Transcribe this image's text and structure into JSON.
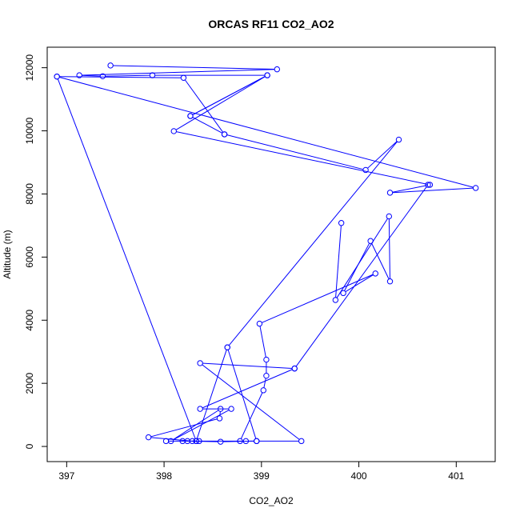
{
  "chart_data": {
    "type": "scatter",
    "title": "ORCAS RF11 CO2_AO2",
    "xlabel": "CO2_AO2",
    "ylabel": "Altitude (m)",
    "xlim": [
      396.8,
      401.4
    ],
    "ylim": [
      -480,
      12650
    ],
    "xticks": [
      397,
      398,
      399,
      400,
      401
    ],
    "yticks": [
      0,
      2000,
      4000,
      6000,
      8000,
      10000,
      12000
    ],
    "grid": false,
    "legend": "none",
    "colors": {
      "series": "#0000ff",
      "axis": "#000000"
    },
    "series": [
      {
        "style": "points-and-lines",
        "points": [
          {
            "x": 397.45,
            "y": 12070
          },
          {
            "x": 399.16,
            "y": 11950
          },
          {
            "x": 397.13,
            "y": 11760
          },
          {
            "x": 397.37,
            "y": 11730
          },
          {
            "x": 397.88,
            "y": 11760
          },
          {
            "x": 399.06,
            "y": 11760
          },
          {
            "x": 398.1,
            "y": 9990
          },
          {
            "x": 400.73,
            "y": 8290
          },
          {
            "x": 400.32,
            "y": 8040
          },
          {
            "x": 401.2,
            "y": 8190
          },
          {
            "x": 396.9,
            "y": 11720
          },
          {
            "x": 398.2,
            "y": 11680
          },
          {
            "x": 398.62,
            "y": 9890
          },
          {
            "x": 400.07,
            "y": 8760
          },
          {
            "x": 400.41,
            "y": 9720
          },
          {
            "x": 398.65,
            "y": 3140
          },
          {
            "x": 398.33,
            "y": 170
          },
          {
            "x": 396.9,
            "y": 11720
          }
        ]
      },
      {
        "style": "points-and-lines",
        "points": [
          {
            "x": 398.27,
            "y": 10470
          },
          {
            "x": 399.06,
            "y": 11760
          },
          {
            "x": 398.27,
            "y": 10470
          },
          {
            "x": 398.62,
            "y": 9890
          }
        ]
      },
      {
        "style": "points-and-lines",
        "points": [
          {
            "x": 399.82,
            "y": 7080
          },
          {
            "x": 399.76,
            "y": 4640
          },
          {
            "x": 400.31,
            "y": 7290
          },
          {
            "x": 400.32,
            "y": 5230
          },
          {
            "x": 400.12,
            "y": 6510
          },
          {
            "x": 399.84,
            "y": 4860
          },
          {
            "x": 400.17,
            "y": 5480
          },
          {
            "x": 398.98,
            "y": 3890
          },
          {
            "x": 399.05,
            "y": 2750
          },
          {
            "x": 399.05,
            "y": 2240
          },
          {
            "x": 399.02,
            "y": 1780
          },
          {
            "x": 398.78,
            "y": 170
          }
        ]
      },
      {
        "style": "points-and-lines",
        "points": [
          {
            "x": 399.34,
            "y": 2470
          },
          {
            "x": 398.37,
            "y": 1190
          },
          {
            "x": 398.69,
            "y": 1190
          },
          {
            "x": 398.07,
            "y": 170
          },
          {
            "x": 398.58,
            "y": 1190
          },
          {
            "x": 398.57,
            "y": 890
          },
          {
            "x": 397.84,
            "y": 290
          },
          {
            "x": 398.29,
            "y": 170
          },
          {
            "x": 398.36,
            "y": 170
          },
          {
            "x": 398.24,
            "y": 170
          },
          {
            "x": 398.19,
            "y": 170
          },
          {
            "x": 398.58,
            "y": 150
          },
          {
            "x": 398.95,
            "y": 170
          },
          {
            "x": 399.41,
            "y": 170
          },
          {
            "x": 398.37,
            "y": 2640
          },
          {
            "x": 399.34,
            "y": 2470
          },
          {
            "x": 400.71,
            "y": 8290
          }
        ]
      },
      {
        "style": "points-and-lines",
        "points": [
          {
            "x": 398.02,
            "y": 170
          },
          {
            "x": 398.33,
            "y": 170
          },
          {
            "x": 398.84,
            "y": 170
          },
          {
            "x": 398.95,
            "y": 170
          },
          {
            "x": 398.65,
            "y": 3140
          }
        ]
      }
    ]
  }
}
